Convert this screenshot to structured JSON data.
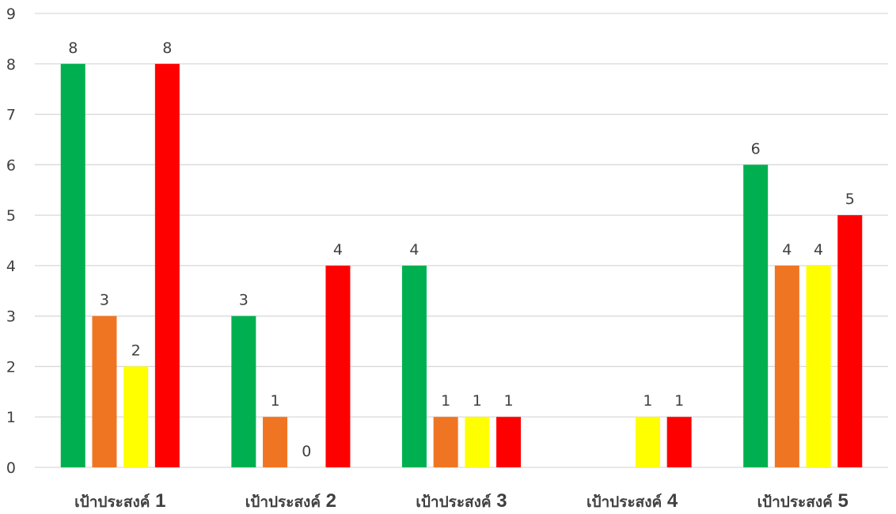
{
  "chart_data": {
    "type": "bar",
    "categories": [
      "เป้าประสงค์ 1",
      "เป้าประสงค์ 2",
      "เป้าประสงค์ 3",
      "เป้าประสงค์ 4",
      "เป้าประสงค์ 5"
    ],
    "category_text": [
      "เป้าประสงค์",
      "เป้าประสงค์",
      "เป้าประสงค์",
      "เป้าประสงค์",
      "เป้าประสงค์"
    ],
    "category_numbers": [
      "1",
      "2",
      "3",
      "4",
      "5"
    ],
    "series": [
      {
        "color": "#00b050",
        "values": [
          8,
          3,
          4,
          null,
          6
        ],
        "labels": [
          "8",
          "3",
          "4",
          "",
          "6"
        ]
      },
      {
        "color": "#f07522",
        "values": [
          3,
          1,
          1,
          null,
          4
        ],
        "labels": [
          "3",
          "1",
          "1",
          "",
          "4"
        ]
      },
      {
        "color": "#ffff00",
        "values": [
          2,
          0,
          1,
          1,
          4
        ],
        "labels": [
          "2",
          "0",
          "1",
          "1",
          "4"
        ]
      },
      {
        "color": "#ff0000",
        "values": [
          8,
          4,
          1,
          1,
          5
        ],
        "labels": [
          "8",
          "4",
          "1",
          "1",
          "5"
        ]
      }
    ],
    "ylim": [
      0,
      9
    ],
    "yticks": [
      "0",
      "1",
      "2",
      "3",
      "4",
      "5",
      "6",
      "7",
      "8",
      "9"
    ],
    "grid": true,
    "legend": "none",
    "title": "",
    "xlabel": "",
    "ylabel": ""
  }
}
